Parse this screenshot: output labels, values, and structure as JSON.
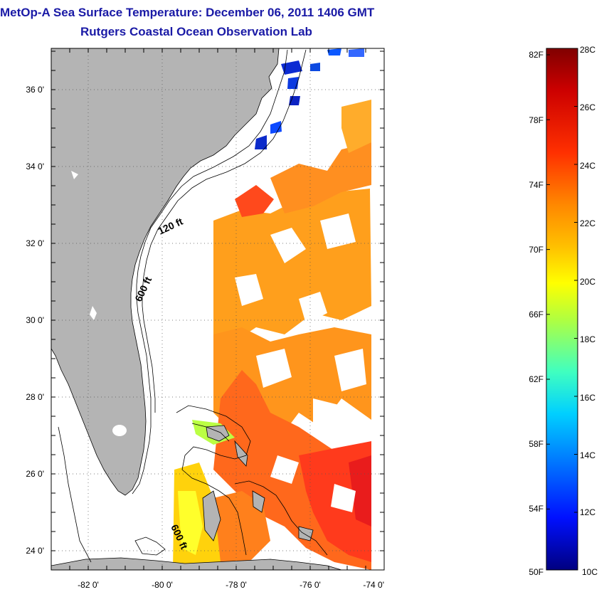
{
  "title": "MetOp-A Sea Surface Temperature:  December 06, 2011 1406 GMT",
  "subtitle": "Rutgers Coastal Ocean Observation Lab",
  "map": {
    "x_ticks": [
      "-82 0'",
      "-80 0'",
      "-78 0'",
      "-76 0'",
      "-74 0'"
    ],
    "y_ticks": [
      "36 0'",
      "34 0'",
      "32 0'",
      "30 0'",
      "28 0'",
      "26 0'",
      "24 0'"
    ],
    "contour_labels": [
      "120 ft",
      "600 ft",
      "600 ft"
    ]
  },
  "colorbar": {
    "left_labels": [
      "82F",
      "78F",
      "74F",
      "70F",
      "66F",
      "62F",
      "58F",
      "54F",
      "50F"
    ],
    "right_labels": [
      "28C",
      "26C",
      "24C",
      "22C",
      "20C",
      "18C",
      "16C",
      "14C",
      "12C",
      "10C"
    ]
  },
  "colors": {
    "land": "#b4b4b4",
    "title": "#1a1aa6",
    "scale": [
      "#800000",
      "#cc0000",
      "#ff2a00",
      "#ff6a00",
      "#ffa400",
      "#ffe000",
      "#d2ff2d",
      "#7dff82",
      "#2affd5",
      "#00c8ff",
      "#0070ff",
      "#0014ff",
      "#000090"
    ]
  }
}
